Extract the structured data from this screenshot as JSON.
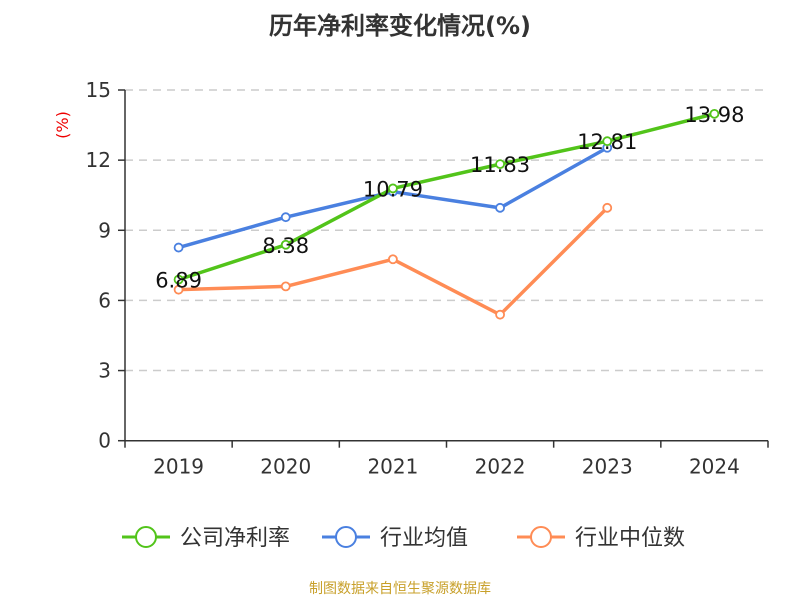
{
  "chart_data": {
    "type": "line",
    "title": "历年净利率变化情况(%)",
    "ylabel": "(%)",
    "xlabel": "",
    "categories": [
      "2019",
      "2020",
      "2021",
      "2022",
      "2023",
      "2024"
    ],
    "ylim": [
      0,
      15
    ],
    "yticks": [
      0,
      3,
      6,
      9,
      12,
      15
    ],
    "grid": true,
    "legend_position": "bottom",
    "series": [
      {
        "name": "公司净利率",
        "color": "#52c41a",
        "values": [
          6.89,
          8.38,
          10.79,
          11.83,
          12.81,
          13.98
        ],
        "labels": [
          "6.89",
          "8.38",
          "10.79",
          "11.83",
          "12.81",
          "13.98"
        ]
      },
      {
        "name": "行业均值",
        "color": "#4a80e0",
        "values": [
          8.26,
          9.56,
          10.65,
          9.96,
          12.53,
          null
        ]
      },
      {
        "name": "行业中位数",
        "color": "#ff8c55",
        "values": [
          6.46,
          6.6,
          7.76,
          5.39,
          9.96,
          null
        ]
      }
    ]
  },
  "source": "制图数据来自恒生聚源数据库"
}
